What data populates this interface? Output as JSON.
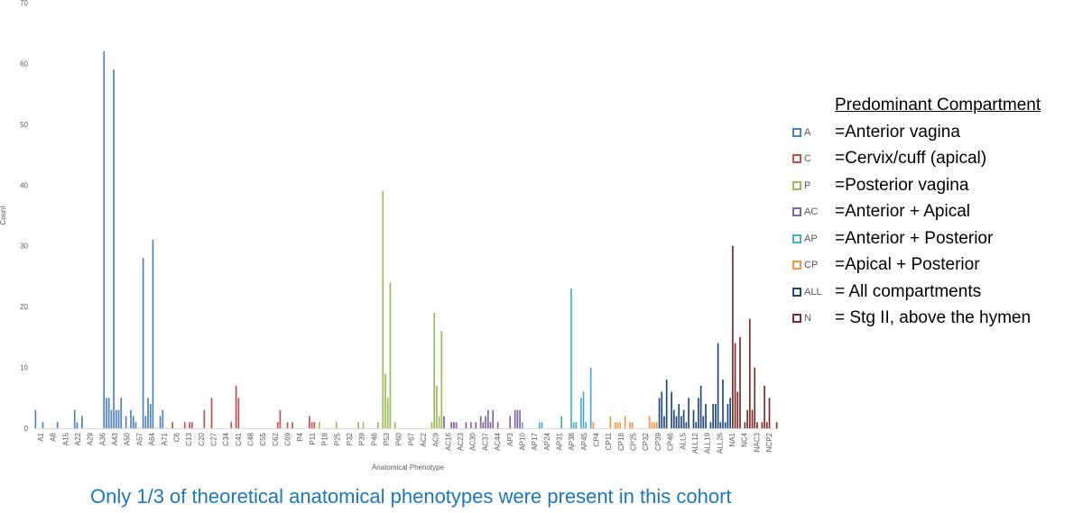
{
  "chart_data": {
    "type": "bar",
    "xlabel": "Anatomical Phenotype",
    "ylabel": "Count",
    "ylim": [
      0,
      70
    ],
    "yticks": [
      0,
      10,
      20,
      30,
      40,
      50,
      60,
      70
    ],
    "grid": false,
    "legend_placement": "right",
    "x_tick_labels": [
      "A1",
      "A8",
      "A15",
      "A22",
      "A29",
      "A36",
      "A43",
      "A50",
      "A57",
      "A64",
      "A71",
      "C6",
      "C13",
      "C20",
      "C27",
      "C34",
      "C41",
      "C48",
      "C55",
      "C62",
      "C69",
      "P4",
      "P11",
      "P18",
      "P25",
      "P32",
      "P39",
      "P46",
      "P53",
      "P60",
      "P67",
      "AC2",
      "AC9",
      "AC16",
      "AC23",
      "AC30",
      "AC37",
      "AC44",
      "AP3",
      "AP10",
      "AP17",
      "AP24",
      "AP31",
      "AP38",
      "AP45",
      "CP4",
      "CP11",
      "CP18",
      "CP25",
      "CP32",
      "CP39",
      "CP46",
      "ALL5",
      "ALL12",
      "ALL19",
      "ALL26",
      "NA1",
      "NC4",
      "NAC3",
      "NCP2"
    ],
    "series": [
      {
        "name": "A",
        "color": "#4f81bd",
        "values": [
          3,
          0,
          0,
          1,
          0,
          0,
          0,
          0,
          0,
          1,
          0,
          0,
          0,
          0,
          0,
          0,
          3,
          1,
          0,
          2,
          0,
          0,
          0,
          0,
          0,
          0,
          0,
          0,
          62,
          5,
          5,
          3,
          59,
          3,
          3,
          5,
          0,
          2,
          0,
          3,
          2,
          1,
          0,
          0,
          28,
          2,
          5,
          4,
          31,
          0,
          0,
          2,
          3,
          0,
          0,
          0
        ]
      },
      {
        "name": "C",
        "color": "#c0504d",
        "values": [
          1,
          0,
          0,
          0,
          0,
          1,
          0,
          1,
          1,
          0,
          0,
          0,
          0,
          3,
          0,
          0,
          5,
          0,
          0,
          0,
          0,
          0,
          0,
          0,
          1,
          0,
          7,
          5,
          0,
          0,
          0,
          0,
          0,
          0,
          0,
          0,
          0,
          0,
          0,
          0,
          0,
          0,
          0,
          1,
          3,
          0,
          0,
          1,
          0,
          1,
          0,
          0,
          0,
          0,
          0,
          0,
          2,
          1,
          1,
          0
        ]
      },
      {
        "name": "P",
        "color": "#9bbb59",
        "values": [
          1,
          0,
          0,
          0,
          0,
          0,
          0,
          1,
          0,
          0,
          0,
          0,
          0,
          0,
          0,
          0,
          1,
          0,
          1,
          0,
          0,
          0,
          0,
          0,
          1,
          0,
          39,
          9,
          5,
          24,
          0,
          1,
          0,
          0,
          0,
          0,
          0,
          0,
          0,
          0,
          0,
          0,
          0,
          0,
          0,
          0,
          1,
          19,
          7,
          2,
          16
        ]
      },
      {
        "name": "AC",
        "color": "#8064a2",
        "values": [
          2,
          0,
          0,
          1,
          1,
          1,
          0,
          0,
          0,
          1,
          0,
          1,
          0,
          1,
          0,
          2,
          1,
          2,
          3,
          1,
          3,
          0,
          1,
          0,
          0,
          0,
          0,
          2,
          0,
          3,
          3,
          3
        ]
      },
      {
        "name": "AP",
        "color": "#4bacc6",
        "values": [
          1,
          0,
          0,
          0,
          0,
          0,
          0,
          1,
          1,
          0,
          0,
          0,
          0,
          0,
          0,
          0,
          2,
          0,
          0,
          0,
          23,
          1,
          1,
          0,
          5,
          6,
          1,
          0,
          10
        ]
      },
      {
        "name": "CP",
        "color": "#f79646",
        "values": [
          1,
          0,
          0,
          0,
          0,
          0,
          0,
          2,
          0,
          1,
          1,
          1,
          0,
          2,
          0,
          1,
          1,
          0,
          0,
          0,
          0,
          0,
          0,
          2,
          1,
          1,
          1
        ]
      },
      {
        "name": "ALL",
        "color": "#1f497d",
        "values": [
          5,
          6,
          2,
          8,
          0,
          6,
          3,
          2,
          4,
          2,
          3,
          1,
          5,
          0,
          3,
          1,
          5,
          7,
          2,
          4,
          0,
          1,
          4,
          4,
          14,
          1,
          8,
          1,
          4,
          5
        ]
      },
      {
        "name": "N",
        "color": "#7b2c27",
        "values": [
          30,
          14,
          6,
          15,
          0,
          1,
          3,
          18,
          3,
          10,
          1,
          0,
          1,
          7,
          1,
          5,
          0,
          0,
          1
        ]
      }
    ]
  },
  "legend": {
    "title": "Predominant Compartment",
    "items": [
      {
        "code": "A",
        "color": "#4f81bd",
        "description": "=Anterior vagina"
      },
      {
        "code": "C",
        "color": "#c0504d",
        "description": "=Cervix/cuff (apical)"
      },
      {
        "code": "P",
        "color": "#9bbb59",
        "description": "=Posterior vagina"
      },
      {
        "code": "AC",
        "color": "#8064a2",
        "description": "=Anterior + Apical"
      },
      {
        "code": "AP",
        "color": "#4bacc6",
        "description": "=Anterior + Posterior"
      },
      {
        "code": "CP",
        "color": "#f79646",
        "description": "=Apical + Posterior"
      },
      {
        "code": "ALL",
        "color": "#1f497d",
        "description": "= All compartments"
      },
      {
        "code": "N",
        "color": "#7b2c27",
        "description": "= Stg II, above the hymen"
      }
    ]
  },
  "caption": "Only 1/3 of theoretical anatomical phenotypes were present in this cohort"
}
